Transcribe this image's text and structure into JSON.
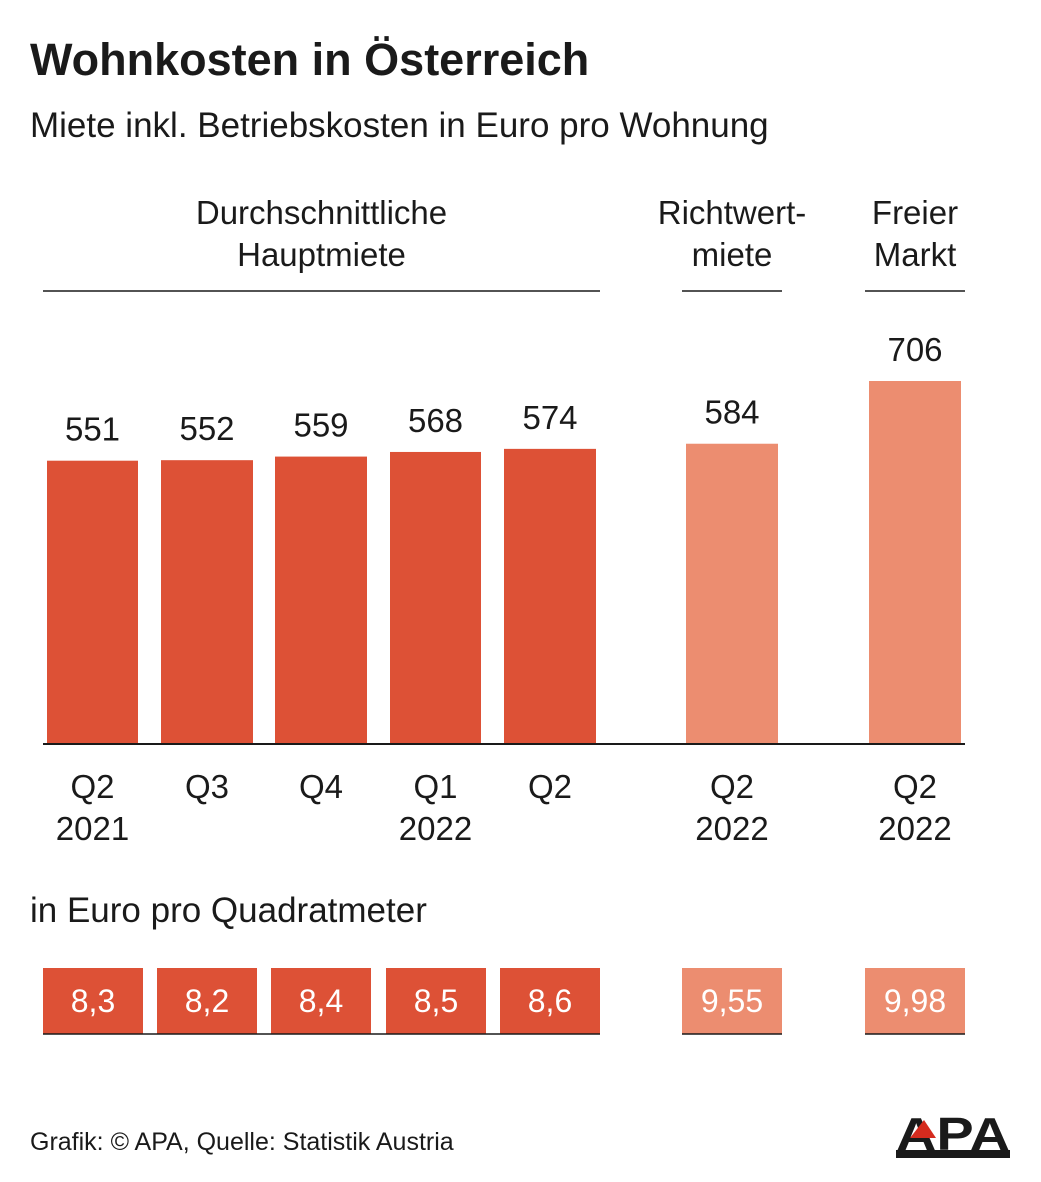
{
  "title": "Wohnkosten in Österreich",
  "subtitle": "Miete inkl. Betriebskosten in Euro pro Wohnung",
  "source": "Grafik: © APA, Quelle: Statistik Austria",
  "logo_text": "APA",
  "colors": {
    "dark": "#dd5136",
    "light": "#ec8d70",
    "text": "#1a1a1a",
    "logo_accent": "#d52b1e"
  },
  "chart_data": {
    "type": "bar",
    "title": "Wohnkosten in Österreich",
    "subtitle": "Miete inkl. Betriebskosten in Euro pro Wohnung",
    "groups": [
      {
        "name": "Durchschnittliche Hauptmiete",
        "name_lines": [
          "Durchschnittliche",
          "Hauptmiete"
        ],
        "color": "#dd5136",
        "categories": [
          [
            "Q2",
            "2021"
          ],
          [
            "Q3",
            ""
          ],
          [
            "Q4",
            ""
          ],
          [
            "Q1",
            "2022"
          ],
          [
            "Q2",
            ""
          ]
        ],
        "values": [
          551,
          552,
          559,
          568,
          574
        ],
        "per_sqm": [
          "8,3",
          "8,2",
          "8,4",
          "8,5",
          "8,6"
        ]
      },
      {
        "name": "Richtwertmiete",
        "name_lines": [
          "Richtwert-",
          "miete"
        ],
        "color": "#ec8d70",
        "categories": [
          [
            "Q2",
            "2022"
          ]
        ],
        "values": [
          584
        ],
        "per_sqm": [
          "9,55"
        ]
      },
      {
        "name": "Freier Markt",
        "name_lines": [
          "Freier",
          "Markt"
        ],
        "color": "#ec8d70",
        "categories": [
          [
            "Q2",
            "2022"
          ]
        ],
        "values": [
          706
        ],
        "per_sqm": [
          "9,98"
        ]
      }
    ],
    "per_sqm_label": "in Euro pro Quadratmeter",
    "ylim": [
      0,
      706
    ],
    "grid": false
  }
}
